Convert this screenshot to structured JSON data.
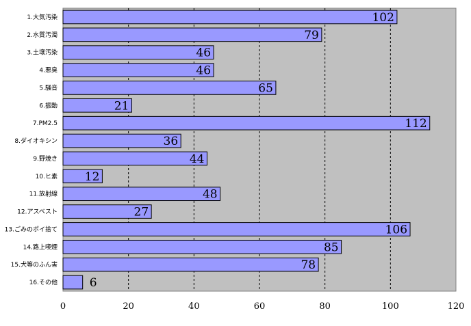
{
  "chart_data": {
    "type": "bar",
    "orientation": "horizontal",
    "categories": [
      "1.大気汚染",
      "2.水質汚濁",
      "3.土壌汚染",
      "4.悪臭",
      "5.騒音",
      "6.振動",
      "7.PM2.5",
      "8.ダイオキシン",
      "9.野焼き",
      "10.ヒ素",
      "11.放射線",
      "12.アスベスト",
      "13.ごみのポイ捨て",
      "14.路上喫煙",
      "15.犬等のふん害",
      "16.その他"
    ],
    "values": [
      102,
      79,
      46,
      46,
      65,
      21,
      112,
      36,
      44,
      12,
      48,
      27,
      106,
      85,
      78,
      6
    ],
    "xlim": [
      0,
      120
    ],
    "xticks": [
      0,
      20,
      40,
      60,
      80,
      100,
      120
    ],
    "grid": "vertical dashed",
    "legend": "none",
    "colors": {
      "plot_bg": "#c0c0c0",
      "bar_fill": "#9999ff",
      "bar_stroke": "#000000"
    }
  }
}
